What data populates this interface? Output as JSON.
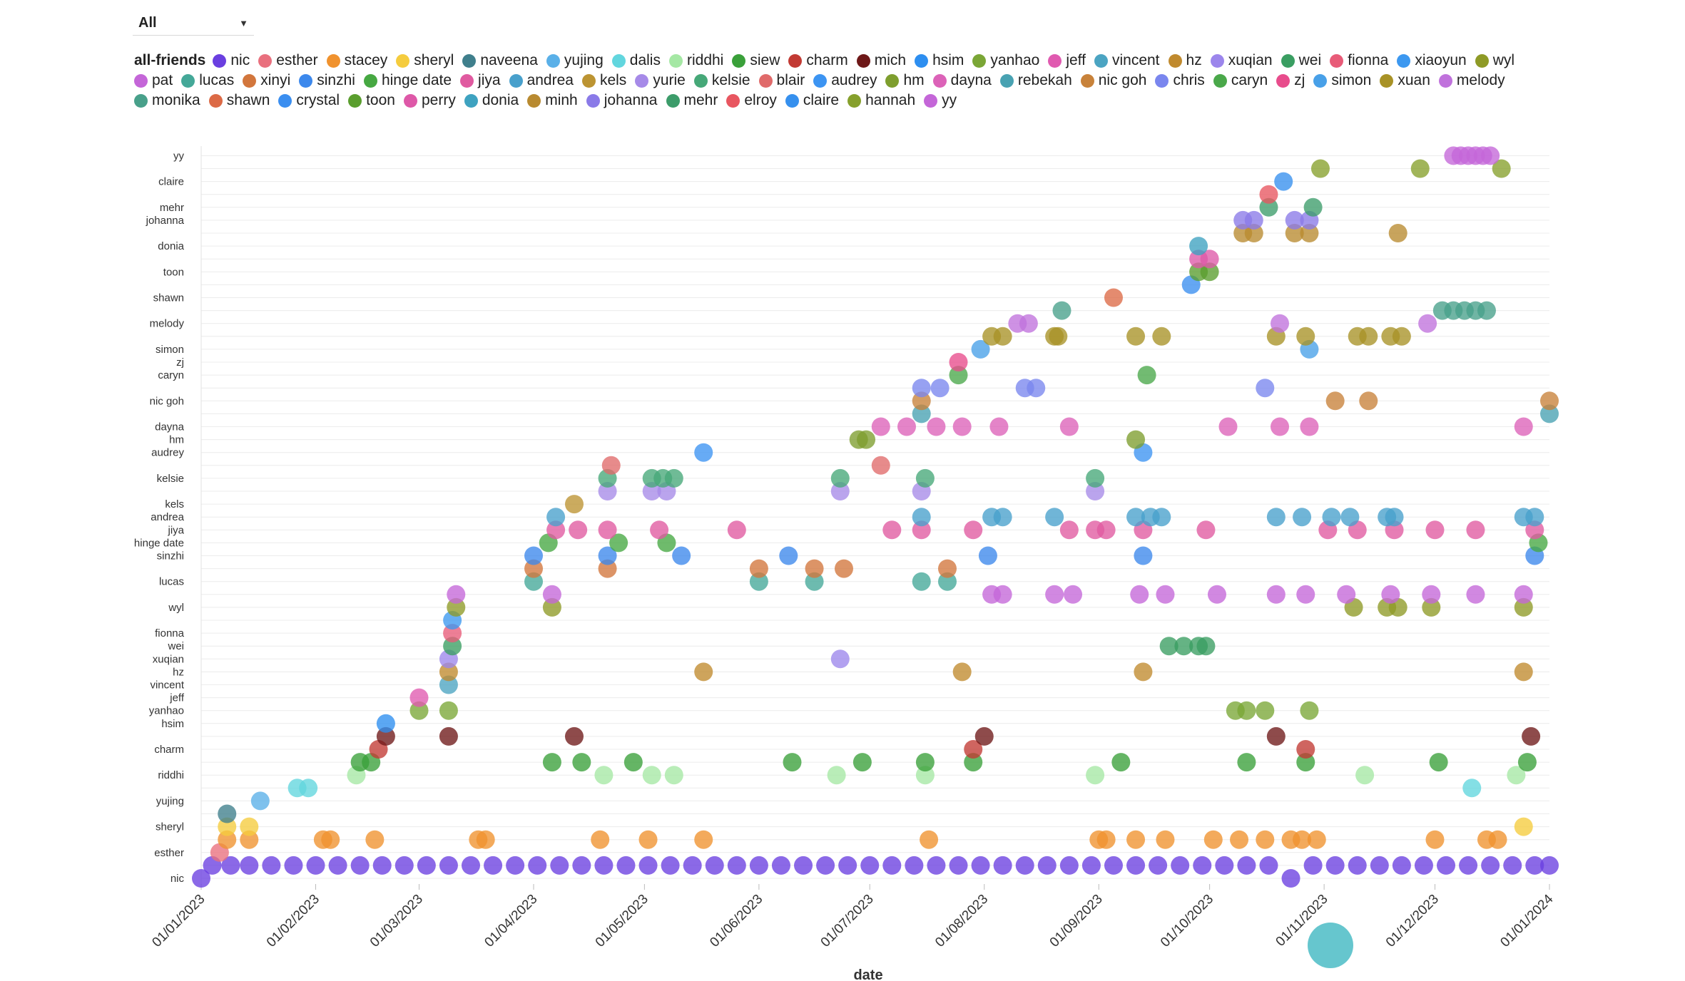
{
  "filter": {
    "selected": "All"
  },
  "legend": {
    "title": "all-friends",
    "items": [
      {
        "name": "nic",
        "color": "#6a3fe0"
      },
      {
        "name": "esther",
        "color": "#e9707e"
      },
      {
        "name": "stacey",
        "color": "#f0922e"
      },
      {
        "name": "sheryl",
        "color": "#f5cc3e"
      },
      {
        "name": "naveena",
        "color": "#3f7f8c"
      },
      {
        "name": "yujing",
        "color": "#5ab0e8"
      },
      {
        "name": "dalis",
        "color": "#62d6de"
      },
      {
        "name": "riddhi",
        "color": "#a5e8a4"
      },
      {
        "name": "siew",
        "color": "#3aa03a"
      },
      {
        "name": "charm",
        "color": "#c23a33"
      },
      {
        "name": "mich",
        "color": "#6e1818"
      },
      {
        "name": "hsim",
        "color": "#2d8ef0"
      },
      {
        "name": "yanhao",
        "color": "#7aa636"
      },
      {
        "name": "jeff",
        "color": "#e05ab0"
      },
      {
        "name": "vincent",
        "color": "#4ba4c2"
      },
      {
        "name": "hz",
        "color": "#c08a2e"
      },
      {
        "name": "xuqian",
        "color": "#9c86ec"
      },
      {
        "name": "wei",
        "color": "#3a9e62"
      },
      {
        "name": "fionna",
        "color": "#e85b78"
      },
      {
        "name": "xiaoyun",
        "color": "#3c98f0"
      },
      {
        "name": "wyl",
        "color": "#8e9a26"
      },
      {
        "name": "pat",
        "color": "#c466d8"
      },
      {
        "name": "lucas",
        "color": "#44a898"
      },
      {
        "name": "xinyi",
        "color": "#d2763c"
      },
      {
        "name": "sinzhi",
        "color": "#3c88ec"
      },
      {
        "name": "hinge date",
        "color": "#46a842"
      },
      {
        "name": "jiya",
        "color": "#e05aa0"
      },
      {
        "name": "andrea",
        "color": "#48a0cc"
      },
      {
        "name": "kels",
        "color": "#bc9432"
      },
      {
        "name": "yurie",
        "color": "#a68ae8"
      },
      {
        "name": "kelsie",
        "color": "#46a878"
      },
      {
        "name": "blair",
        "color": "#e06a6a"
      },
      {
        "name": "audrey",
        "color": "#3c94f2"
      },
      {
        "name": "hm",
        "color": "#7e9e2e"
      },
      {
        "name": "dayna",
        "color": "#dc62b8"
      },
      {
        "name": "rebekah",
        "color": "#48a2b2"
      },
      {
        "name": "nic goh",
        "color": "#c8823a"
      },
      {
        "name": "chris",
        "color": "#7a86ee"
      },
      {
        "name": "caryn",
        "color": "#4aa84a"
      },
      {
        "name": "zj",
        "color": "#e84c8c"
      },
      {
        "name": "simon",
        "color": "#48a0e8"
      },
      {
        "name": "xuan",
        "color": "#a89226"
      },
      {
        "name": "melody",
        "color": "#c072dc"
      },
      {
        "name": "monika",
        "color": "#48a08a"
      },
      {
        "name": "shawn",
        "color": "#dc6a46"
      },
      {
        "name": "crystal",
        "color": "#3a8ef0"
      },
      {
        "name": "toon",
        "color": "#5a9e2e"
      },
      {
        "name": "perry",
        "color": "#de58a8"
      },
      {
        "name": "donia",
        "color": "#3ea2c0"
      },
      {
        "name": "minh",
        "color": "#b88a30"
      },
      {
        "name": "johanna",
        "color": "#8a7ae8"
      },
      {
        "name": "mehr",
        "color": "#3c9c6a"
      },
      {
        "name": "elroy",
        "color": "#e85660"
      },
      {
        "name": "claire",
        "color": "#3690ee"
      },
      {
        "name": "hannah",
        "color": "#86a02c"
      },
      {
        "name": "yy",
        "color": "#c466d8"
      }
    ]
  },
  "chart_data": {
    "type": "scatter",
    "xlabel": "date",
    "ylabel": "",
    "x_ticks": [
      "01/01/2023",
      "01/02/2023",
      "01/03/2023",
      "01/04/2023",
      "01/05/2023",
      "01/06/2023",
      "01/07/2023",
      "01/08/2023",
      "01/09/2023",
      "01/10/2023",
      "01/11/2023",
      "01/12/2023",
      "01/01/2024"
    ],
    "x_range": [
      "2023-01-01",
      "2024-01-01"
    ],
    "y_tick_labels": [
      "nic",
      "esther",
      "sheryl",
      "yujing",
      "riddhi",
      "charm",
      "hsim",
      "yanhao",
      "jeff",
      "vincent",
      "hz",
      "xuqian",
      "wei",
      "fionna",
      "wyl",
      "lucas",
      "sinzhi",
      "hinge date",
      "jiya",
      "andrea",
      "kels",
      "kelsie",
      "audrey",
      "hm",
      "dayna",
      "nic goh",
      "caryn",
      "zj",
      "simon",
      "melody",
      "shawn",
      "toon",
      "donia",
      "johanna",
      "mehr",
      "claire",
      "yy"
    ],
    "grid": true,
    "legend_placement": "top",
    "series": [
      {
        "name": "nic",
        "dates": [
          "2023-01-01",
          "2023-01-04",
          "2023-01-09",
          "2023-01-14",
          "2023-01-20",
          "2023-01-26",
          "2023-02-01",
          "2023-02-07",
          "2023-02-13",
          "2023-02-19",
          "2023-02-25",
          "2023-03-03",
          "2023-03-09",
          "2023-03-15",
          "2023-03-21",
          "2023-03-27",
          "2023-04-02",
          "2023-04-08",
          "2023-04-14",
          "2023-04-20",
          "2023-04-26",
          "2023-05-02",
          "2023-05-08",
          "2023-05-14",
          "2023-05-20",
          "2023-05-26",
          "2023-06-01",
          "2023-06-07",
          "2023-06-13",
          "2023-06-19",
          "2023-06-25",
          "2023-07-01",
          "2023-07-07",
          "2023-07-13",
          "2023-07-19",
          "2023-07-25",
          "2023-07-31",
          "2023-08-06",
          "2023-08-12",
          "2023-08-18",
          "2023-08-24",
          "2023-08-30",
          "2023-09-05",
          "2023-09-11",
          "2023-09-17",
          "2023-09-23",
          "2023-09-29",
          "2023-10-05",
          "2023-10-11",
          "2023-10-17",
          "2023-10-23",
          "2023-10-29",
          "2023-11-04",
          "2023-11-10",
          "2023-11-16",
          "2023-11-22",
          "2023-11-28",
          "2023-12-04",
          "2023-12-10",
          "2023-12-16",
          "2023-12-22",
          "2023-12-28",
          "2024-01-01"
        ],
        "yoff": [
          1,
          0,
          0,
          0,
          0,
          0,
          0,
          0,
          0,
          0,
          0,
          0,
          0,
          0,
          0,
          0,
          0,
          0,
          0,
          0,
          0,
          0,
          0,
          0,
          0,
          0,
          0,
          0,
          0,
          0,
          0,
          0,
          0,
          0,
          0,
          0,
          0,
          0,
          0,
          0,
          0,
          0,
          0,
          0,
          0,
          0,
          0,
          0,
          0,
          0,
          1,
          0,
          0,
          0,
          0,
          0,
          0,
          0,
          0,
          0,
          0,
          0,
          0
        ]
      },
      {
        "name": "esther",
        "dates": [
          "2023-01-06"
        ]
      },
      {
        "name": "stacey",
        "dates": [
          "2023-01-08",
          "2023-01-14",
          "2023-02-03",
          "2023-02-05",
          "2023-02-17",
          "2023-03-17",
          "2023-03-19",
          "2023-04-19",
          "2023-05-02",
          "2023-05-17",
          "2023-07-17",
          "2023-09-01",
          "2023-09-03",
          "2023-09-11",
          "2023-09-19",
          "2023-10-02",
          "2023-10-09",
          "2023-10-16",
          "2023-10-23",
          "2023-10-26",
          "2023-10-30",
          "2023-12-01",
          "2023-12-15",
          "2023-12-18"
        ]
      },
      {
        "name": "sheryl",
        "dates": [
          "2023-01-08",
          "2023-01-14",
          "2023-12-25"
        ]
      },
      {
        "name": "naveena",
        "dates": [
          "2023-01-08"
        ]
      },
      {
        "name": "yujing",
        "dates": [
          "2023-01-17"
        ]
      },
      {
        "name": "dalis",
        "dates": [
          "2023-01-27",
          "2023-01-30",
          "2023-12-11"
        ]
      },
      {
        "name": "riddhi",
        "dates": [
          "2023-02-12",
          "2023-04-20",
          "2023-05-03",
          "2023-05-09",
          "2023-06-22",
          "2023-07-16",
          "2023-08-31",
          "2023-11-12",
          "2023-12-23"
        ]
      },
      {
        "name": "siew",
        "dates": [
          "2023-02-13",
          "2023-02-16",
          "2023-04-06",
          "2023-04-14",
          "2023-04-28",
          "2023-06-10",
          "2023-06-29",
          "2023-07-16",
          "2023-07-29",
          "2023-09-07",
          "2023-10-11",
          "2023-10-27",
          "2023-12-02",
          "2023-12-26"
        ]
      },
      {
        "name": "charm",
        "dates": [
          "2023-02-18",
          "2023-07-29",
          "2023-10-27"
        ]
      },
      {
        "name": "mich",
        "dates": [
          "2023-02-20",
          "2023-03-09",
          "2023-04-12",
          "2023-08-01",
          "2023-10-19",
          "2023-12-27"
        ]
      },
      {
        "name": "hsim",
        "dates": [
          "2023-02-20"
        ]
      },
      {
        "name": "yanhao",
        "dates": [
          "2023-03-01",
          "2023-03-09",
          "2023-10-08",
          "2023-10-11",
          "2023-10-16",
          "2023-10-28"
        ]
      },
      {
        "name": "jeff",
        "dates": [
          "2023-03-01"
        ]
      },
      {
        "name": "vincent",
        "dates": [
          "2023-03-09"
        ]
      },
      {
        "name": "hz",
        "dates": [
          "2023-03-09",
          "2023-05-17",
          "2023-07-26",
          "2023-09-13",
          "2023-12-25"
        ]
      },
      {
        "name": "xuqian",
        "dates": [
          "2023-03-09",
          "2023-06-23"
        ]
      },
      {
        "name": "wei",
        "dates": [
          "2023-03-10",
          "2023-09-20",
          "2023-09-24",
          "2023-09-28",
          "2023-09-30"
        ]
      },
      {
        "name": "fionna",
        "dates": [
          "2023-03-10"
        ]
      },
      {
        "name": "xiaoyun",
        "dates": [
          "2023-03-10"
        ]
      },
      {
        "name": "wyl",
        "dates": [
          "2023-03-11",
          "2023-04-06",
          "2023-11-09",
          "2023-11-18",
          "2023-11-21",
          "2023-11-30",
          "2023-12-25"
        ]
      },
      {
        "name": "pat",
        "dates": [
          "2023-03-11",
          "2023-04-06",
          "2023-08-03",
          "2023-08-06",
          "2023-08-20",
          "2023-08-25",
          "2023-09-12",
          "2023-09-19",
          "2023-10-03",
          "2023-10-19",
          "2023-10-27",
          "2023-11-07",
          "2023-11-19",
          "2023-11-30",
          "2023-12-12",
          "2023-12-25"
        ]
      },
      {
        "name": "lucas",
        "dates": [
          "2023-04-01",
          "2023-06-01",
          "2023-06-16",
          "2023-07-15",
          "2023-07-22"
        ]
      },
      {
        "name": "xinyi",
        "dates": [
          "2023-04-01",
          "2023-04-21",
          "2023-06-01",
          "2023-06-16",
          "2023-06-24",
          "2023-07-22"
        ]
      },
      {
        "name": "sinzhi",
        "dates": [
          "2023-04-01",
          "2023-04-21",
          "2023-05-11",
          "2023-06-09",
          "2023-08-02",
          "2023-09-13",
          "2023-12-28"
        ]
      },
      {
        "name": "hinge date",
        "dates": [
          "2023-04-05",
          "2023-04-24",
          "2023-05-07",
          "2023-12-29"
        ]
      },
      {
        "name": "jiya",
        "dates": [
          "2023-04-07",
          "2023-04-13",
          "2023-04-21",
          "2023-05-05",
          "2023-05-26",
          "2023-07-07",
          "2023-07-15",
          "2023-07-29",
          "2023-08-24",
          "2023-08-31",
          "2023-09-03",
          "2023-09-13",
          "2023-09-30",
          "2023-11-02",
          "2023-11-10",
          "2023-11-20",
          "2023-12-01",
          "2023-12-12",
          "2023-12-28"
        ]
      },
      {
        "name": "andrea",
        "dates": [
          "2023-04-07",
          "2023-07-15",
          "2023-08-03",
          "2023-08-06",
          "2023-08-20",
          "2023-09-11",
          "2023-09-15",
          "2023-09-18",
          "2023-10-19",
          "2023-10-26",
          "2023-11-03",
          "2023-11-08",
          "2023-11-18",
          "2023-11-20",
          "2023-12-25",
          "2023-12-28"
        ]
      },
      {
        "name": "kels",
        "dates": [
          "2023-04-12"
        ]
      },
      {
        "name": "yurie",
        "dates": [
          "2023-04-21",
          "2023-05-03",
          "2023-05-07",
          "2023-06-23",
          "2023-07-15",
          "2023-08-31"
        ]
      },
      {
        "name": "kelsie",
        "dates": [
          "2023-04-21",
          "2023-05-03",
          "2023-05-06",
          "2023-05-09",
          "2023-06-23",
          "2023-07-16",
          "2023-08-31"
        ]
      },
      {
        "name": "blair",
        "dates": [
          "2023-04-22",
          "2023-07-04"
        ]
      },
      {
        "name": "audrey",
        "dates": [
          "2023-05-17",
          "2023-09-13"
        ]
      },
      {
        "name": "hm",
        "dates": [
          "2023-06-28",
          "2023-06-30",
          "2023-09-11"
        ]
      },
      {
        "name": "dayna",
        "dates": [
          "2023-07-04",
          "2023-07-11",
          "2023-07-19",
          "2023-07-26",
          "2023-08-05",
          "2023-08-24",
          "2023-10-06",
          "2023-10-20",
          "2023-10-28",
          "2023-12-25"
        ]
      },
      {
        "name": "rebekah",
        "dates": [
          "2023-07-15",
          "2024-01-01"
        ]
      },
      {
        "name": "nic goh",
        "dates": [
          "2023-07-15",
          "2023-11-04",
          "2023-11-13",
          "2024-01-01"
        ]
      },
      {
        "name": "chris",
        "dates": [
          "2023-07-15",
          "2023-07-20",
          "2023-08-12",
          "2023-08-15",
          "2023-10-16"
        ]
      },
      {
        "name": "caryn",
        "dates": [
          "2023-07-25",
          "2023-09-14"
        ]
      },
      {
        "name": "zj",
        "dates": [
          "2023-07-25"
        ]
      },
      {
        "name": "simon",
        "dates": [
          "2023-07-31",
          "2023-10-28"
        ]
      },
      {
        "name": "xuan",
        "dates": [
          "2023-08-03",
          "2023-08-06",
          "2023-08-20",
          "2023-08-21",
          "2023-09-11",
          "2023-09-18",
          "2023-10-19",
          "2023-10-27",
          "2023-11-10",
          "2023-11-13",
          "2023-11-19",
          "2023-11-22"
        ]
      },
      {
        "name": "melody",
        "dates": [
          "2023-08-10",
          "2023-08-13",
          "2023-10-20",
          "2023-11-29"
        ]
      },
      {
        "name": "monika",
        "dates": [
          "2023-08-22",
          "2023-12-03",
          "2023-12-06",
          "2023-12-09",
          "2023-12-12",
          "2023-12-15"
        ]
      },
      {
        "name": "shawn",
        "dates": [
          "2023-09-05"
        ]
      },
      {
        "name": "crystal",
        "dates": [
          "2023-09-26"
        ]
      },
      {
        "name": "toon",
        "dates": [
          "2023-09-28",
          "2023-10-01"
        ]
      },
      {
        "name": "perry",
        "dates": [
          "2023-09-28",
          "2023-10-01"
        ]
      },
      {
        "name": "donia",
        "dates": [
          "2023-09-28"
        ]
      },
      {
        "name": "minh",
        "dates": [
          "2023-10-10",
          "2023-10-13",
          "2023-10-24",
          "2023-10-28",
          "2023-11-21"
        ]
      },
      {
        "name": "johanna",
        "dates": [
          "2023-10-10",
          "2023-10-13",
          "2023-10-24",
          "2023-10-28"
        ]
      },
      {
        "name": "mehr",
        "dates": [
          "2023-10-17",
          "2023-10-29"
        ]
      },
      {
        "name": "elroy",
        "dates": [
          "2023-10-17"
        ]
      },
      {
        "name": "claire",
        "dates": [
          "2023-10-21"
        ]
      },
      {
        "name": "hannah",
        "dates": [
          "2023-10-31",
          "2023-11-27",
          "2023-12-19"
        ]
      },
      {
        "name": "yy",
        "dates": [
          "2023-12-06",
          "2023-12-08",
          "2023-12-10",
          "2023-12-12",
          "2023-12-14",
          "2023-12-16"
        ]
      }
    ]
  }
}
